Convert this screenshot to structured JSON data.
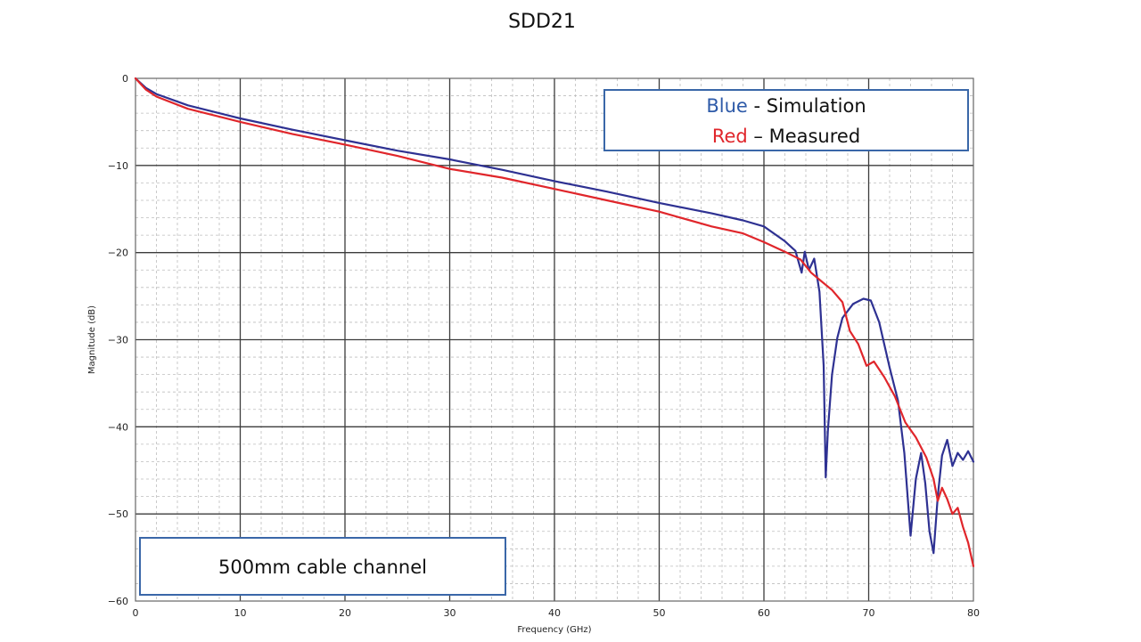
{
  "chart_data": {
    "type": "line",
    "title": "SDD21",
    "xlabel": "Frequency (GHz)",
    "ylabel": "Magnitude (dB)",
    "xlim": [
      0,
      80
    ],
    "ylim": [
      -60,
      0
    ],
    "x_ticks": [
      0,
      10,
      20,
      30,
      40,
      50,
      60,
      70,
      80
    ],
    "y_ticks": [
      0,
      -10,
      -20,
      -30,
      -40,
      -50,
      -60
    ],
    "grid": true,
    "legend_position": "top-right",
    "legend": {
      "blue_word": "Blue",
      "blue_rest": " - Simulation",
      "red_word": "Red",
      "red_rest": " – Measured"
    },
    "annotation": "500mm cable channel",
    "series": [
      {
        "color": "#2e3192",
        "points": [
          [
            0,
            0
          ],
          [
            1,
            -1.1
          ],
          [
            2,
            -1.8
          ],
          [
            5,
            -3.1
          ],
          [
            10,
            -4.6
          ],
          [
            15,
            -5.9
          ],
          [
            20,
            -7.1
          ],
          [
            25,
            -8.3
          ],
          [
            30,
            -9.3
          ],
          [
            35,
            -10.5
          ],
          [
            40,
            -11.8
          ],
          [
            45,
            -13
          ],
          [
            50,
            -14.3
          ],
          [
            55,
            -15.5
          ],
          [
            58,
            -16.3
          ],
          [
            60,
            -17
          ],
          [
            62,
            -18.7
          ],
          [
            63,
            -19.8
          ],
          [
            63.6,
            -22.3
          ],
          [
            63.9,
            -19.9
          ],
          [
            64.3,
            -22
          ],
          [
            64.8,
            -20.7
          ],
          [
            65.3,
            -24.5
          ],
          [
            65.7,
            -33
          ],
          [
            65.9,
            -45.8
          ],
          [
            66.1,
            -40.5
          ],
          [
            66.5,
            -34
          ],
          [
            67,
            -29.8
          ],
          [
            67.5,
            -27.5
          ],
          [
            68.5,
            -25.9
          ],
          [
            69.5,
            -25.3
          ],
          [
            70.2,
            -25.5
          ],
          [
            71,
            -28
          ],
          [
            72,
            -33.2
          ],
          [
            72.8,
            -37
          ],
          [
            73.4,
            -43
          ],
          [
            74,
            -52.5
          ],
          [
            74.5,
            -46
          ],
          [
            75,
            -43
          ],
          [
            75.4,
            -46.5
          ],
          [
            75.8,
            -52
          ],
          [
            76.2,
            -54.5
          ],
          [
            76.6,
            -48
          ],
          [
            77,
            -43.3
          ],
          [
            77.5,
            -41.5
          ],
          [
            78,
            -44.5
          ],
          [
            78.5,
            -43
          ],
          [
            79,
            -43.8
          ],
          [
            79.5,
            -42.8
          ],
          [
            80,
            -44
          ]
        ]
      },
      {
        "color": "#e0262b",
        "points": [
          [
            0,
            0
          ],
          [
            1,
            -1.3
          ],
          [
            2,
            -2.1
          ],
          [
            5,
            -3.5
          ],
          [
            10,
            -5
          ],
          [
            15,
            -6.4
          ],
          [
            20,
            -7.6
          ],
          [
            25,
            -8.9
          ],
          [
            30,
            -10.4
          ],
          [
            35,
            -11.4
          ],
          [
            40,
            -12.7
          ],
          [
            45,
            -14
          ],
          [
            50,
            -15.3
          ],
          [
            55,
            -17
          ],
          [
            58,
            -17.8
          ],
          [
            60,
            -18.8
          ],
          [
            62,
            -19.9
          ],
          [
            63.5,
            -20.8
          ],
          [
            64.5,
            -22.3
          ],
          [
            65.5,
            -23.3
          ],
          [
            66.5,
            -24.3
          ],
          [
            67.5,
            -25.7
          ],
          [
            68.2,
            -29
          ],
          [
            69,
            -30.5
          ],
          [
            69.8,
            -33
          ],
          [
            70.5,
            -32.5
          ],
          [
            71.5,
            -34.3
          ],
          [
            72.5,
            -36.5
          ],
          [
            73.5,
            -39.5
          ],
          [
            74.5,
            -41.2
          ],
          [
            75.5,
            -43.5
          ],
          [
            76.2,
            -46
          ],
          [
            76.6,
            -48.5
          ],
          [
            77,
            -47
          ],
          [
            77.5,
            -48.3
          ],
          [
            78,
            -50
          ],
          [
            78.5,
            -49.3
          ],
          [
            79,
            -51.5
          ],
          [
            79.5,
            -53.3
          ],
          [
            80,
            -56
          ]
        ]
      }
    ]
  }
}
